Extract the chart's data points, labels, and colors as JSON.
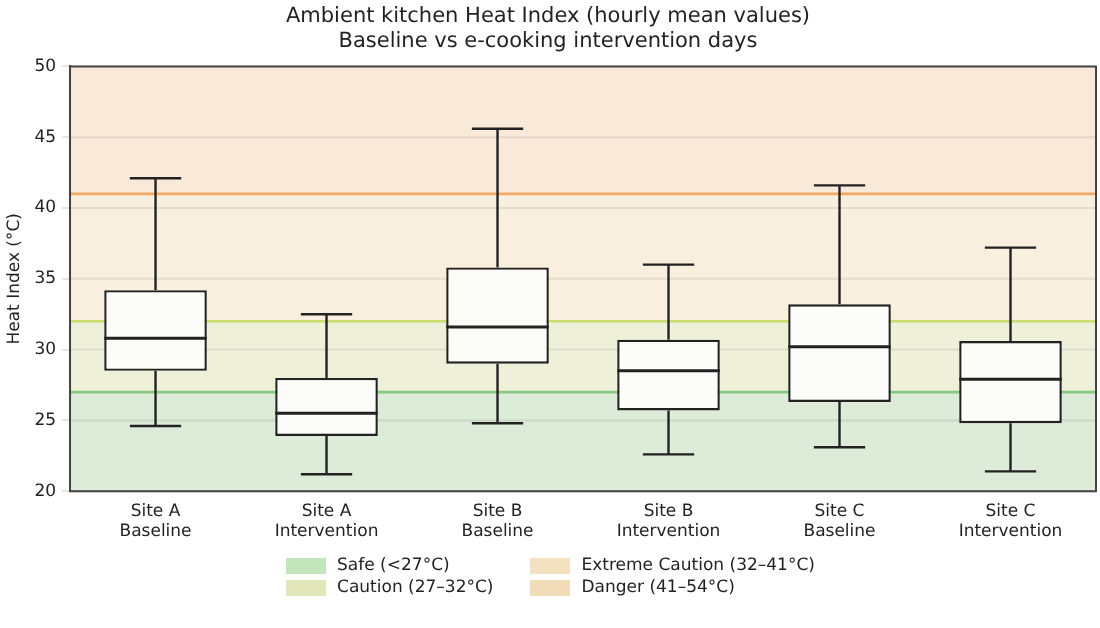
{
  "chart_data": {
    "type": "box",
    "title": "Ambient kitchen Heat Index (hourly mean values)",
    "subtitle": "Baseline vs e-cooking intervention days",
    "ylabel": "Heat Index (°C)",
    "categories": [
      "Site A\nBaseline",
      "Site A\nIntervention",
      "Site B\nBaseline",
      "Site B\nIntervention",
      "Site C\nBaseline",
      "Site C\nIntervention"
    ],
    "boxes": [
      {
        "low": 24.6,
        "q1": 28.5,
        "median": 30.8,
        "q3": 34.2,
        "high": 42.1
      },
      {
        "low": 21.2,
        "q1": 23.9,
        "median": 25.5,
        "q3": 28.0,
        "high": 32.5
      },
      {
        "low": 24.8,
        "q1": 29.0,
        "median": 31.6,
        "q3": 35.8,
        "high": 45.6
      },
      {
        "low": 22.6,
        "q1": 25.7,
        "median": 28.5,
        "q3": 30.7,
        "high": 36.0
      },
      {
        "low": 23.1,
        "q1": 26.3,
        "median": 30.2,
        "q3": 33.2,
        "high": 41.6
      },
      {
        "low": 21.4,
        "q1": 24.8,
        "median": 27.9,
        "q3": 30.6,
        "high": 37.2
      }
    ],
    "ylim": [
      20,
      50
    ],
    "yticks": [
      20,
      25,
      30,
      35,
      40,
      45,
      50
    ],
    "grid": "y",
    "legend": "bottom",
    "bands": [
      {
        "axis": "y",
        "from": 20,
        "to": 27,
        "label": "Safe (<27°C)",
        "color": "#dcecd8"
      },
      {
        "axis": "y",
        "from": 27,
        "to": 32,
        "label": "Caution (27–32°C)",
        "color": "#eef0da"
      },
      {
        "axis": "y",
        "from": 32,
        "to": 41,
        "label": "Extreme Caution (32–41°C)",
        "color": "#f8efde"
      },
      {
        "axis": "y",
        "from": 41,
        "to": 50,
        "label": "Danger (41–54°C)",
        "color": "#f9e9d9"
      }
    ],
    "ref_lines": [
      {
        "axis": "y",
        "value": 27,
        "color": "#86c97e"
      },
      {
        "axis": "y",
        "value": 32,
        "color": "#c9de6c"
      },
      {
        "axis": "y",
        "value": 41,
        "color": "#f2aa66"
      }
    ]
  }
}
